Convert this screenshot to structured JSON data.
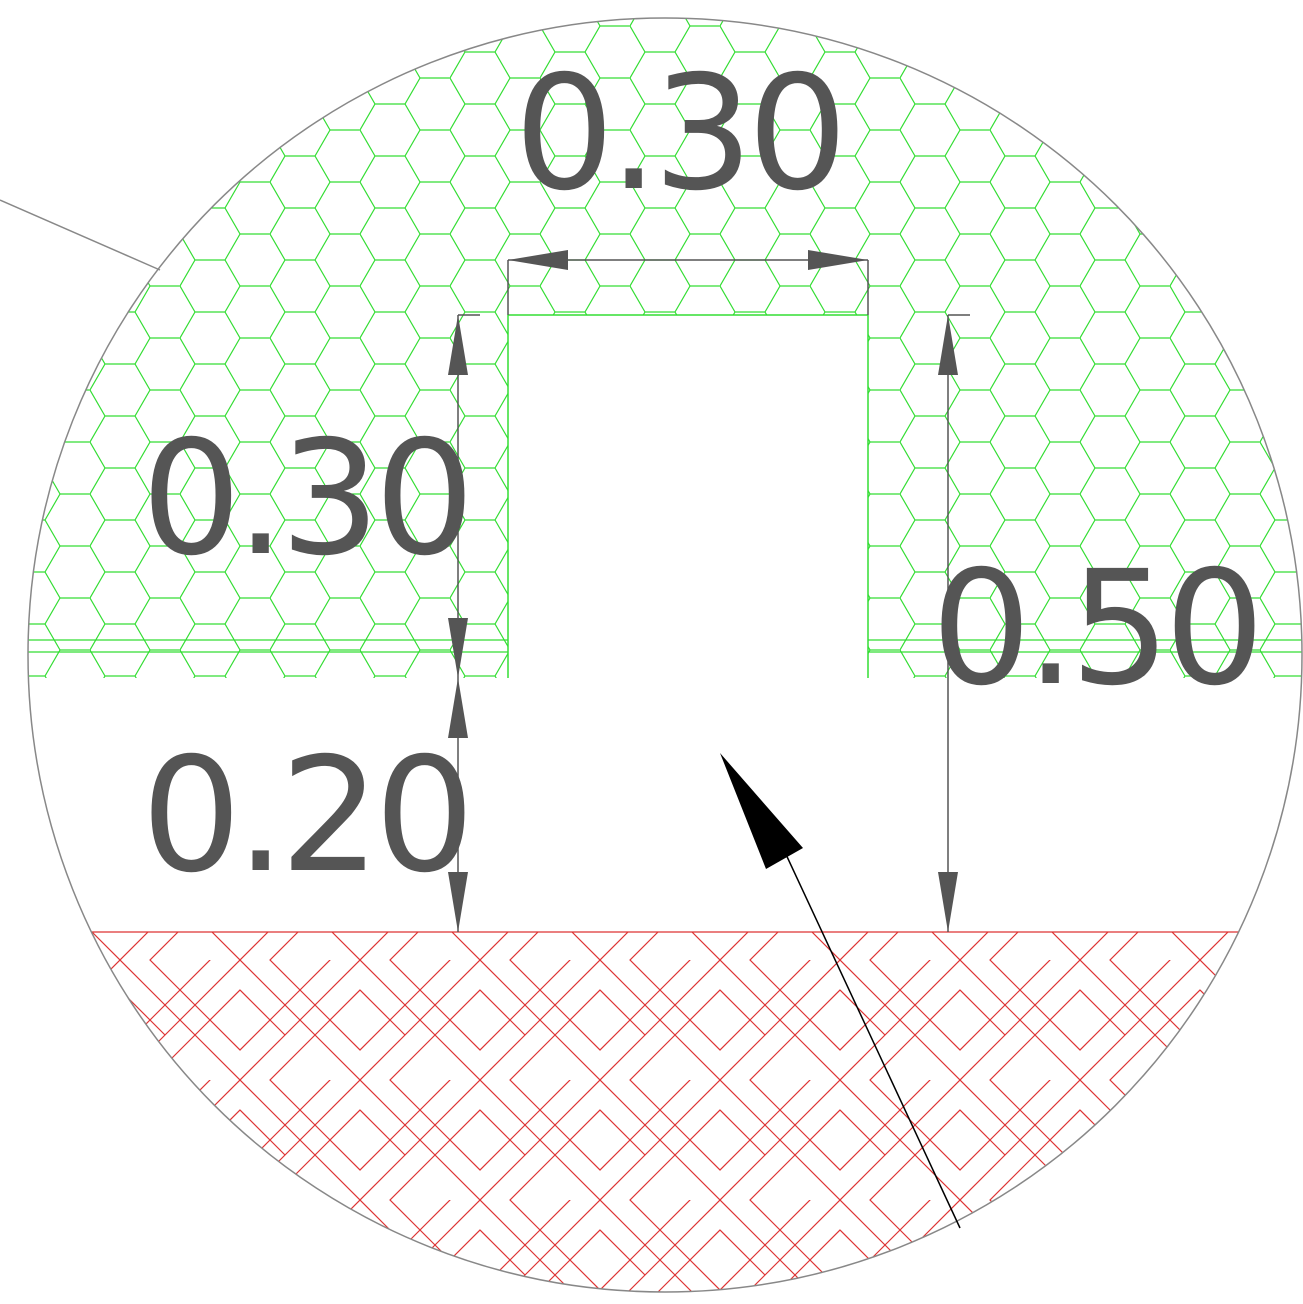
{
  "dimensions": {
    "top_width": "0.30",
    "left_upper_height": "0.30",
    "left_lower_height": "0.20",
    "right_total_height": "0.50"
  },
  "colors": {
    "dimension": "#555555",
    "outline": "#888888",
    "hex_hatch": "#33dd33",
    "weave_hatch": "#dd3333",
    "leader": "#000000",
    "background": "#ffffff"
  }
}
